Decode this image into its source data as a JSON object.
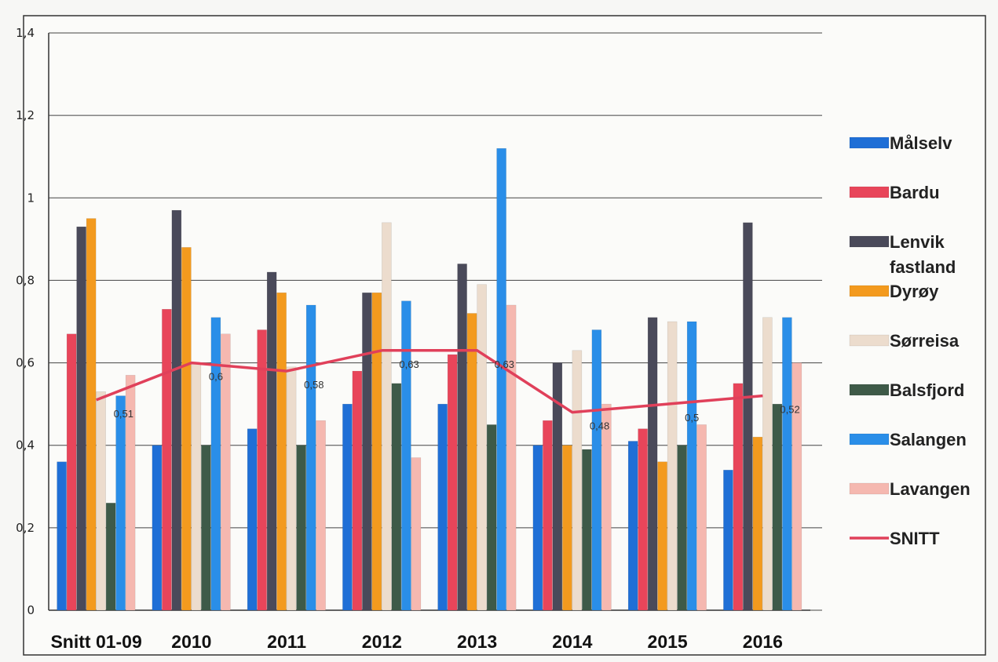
{
  "chart_data": {
    "type": "bar",
    "categories": [
      "Snitt 01-09",
      "2010",
      "2011",
      "2012",
      "2013",
      "2014",
      "2015",
      "2016"
    ],
    "ylim": [
      0,
      1.4
    ],
    "y_ticks": [
      "0",
      "0,2",
      "0,4",
      "0,6",
      "0,8",
      "1",
      "1,2",
      "1,4"
    ],
    "grid": true,
    "legend_position": "right",
    "series": [
      {
        "name": "Målselv",
        "color": "#1f6fd6",
        "values": [
          0.36,
          0.4,
          0.44,
          0.5,
          0.5,
          0.4,
          0.41,
          0.34
        ]
      },
      {
        "name": "Bardu",
        "color": "#e8455a",
        "values": [
          0.67,
          0.73,
          0.68,
          0.58,
          0.62,
          0.46,
          0.44,
          0.55
        ]
      },
      {
        "name": "Lenvik fastland",
        "color": "#4a4a5a",
        "values": [
          0.93,
          0.97,
          0.82,
          0.77,
          0.84,
          0.6,
          0.71,
          0.94
        ]
      },
      {
        "name": "Dyrøy",
        "color": "#f39a1e",
        "values": [
          0.95,
          0.88,
          0.77,
          0.77,
          0.72,
          0.4,
          0.36,
          0.42
        ]
      },
      {
        "name": "Sørreisa",
        "color": "#ecdccd",
        "values": [
          0.53,
          0.6,
          0.59,
          0.94,
          0.79,
          0.63,
          0.7,
          0.71
        ]
      },
      {
        "name": "Balsfjord",
        "color": "#3e5a48",
        "values": [
          0.26,
          0.4,
          0.4,
          0.55,
          0.45,
          0.39,
          0.4,
          0.5
        ]
      },
      {
        "name": "Salangen",
        "color": "#2a8ee8",
        "values": [
          0.52,
          0.71,
          0.74,
          0.75,
          1.12,
          0.68,
          0.7,
          0.71
        ]
      },
      {
        "name": "Lavangen",
        "color": "#f5b8b0",
        "values": [
          0.57,
          0.67,
          0.46,
          0.37,
          0.74,
          0.5,
          0.45,
          0.6
        ]
      }
    ],
    "line_series": {
      "name": "SNITT",
      "color": "#e0405a",
      "values": [
        0.51,
        0.6,
        0.58,
        0.63,
        0.63,
        0.48,
        0.5,
        0.52
      ],
      "labels": [
        "0,51",
        "0,6",
        "0,58",
        "0,63",
        "0,63",
        "0,48",
        "0,5",
        "0,52"
      ]
    },
    "legend": [
      {
        "label": "Målselv",
        "color": "#1f6fd6",
        "kind": "box"
      },
      {
        "label": "Bardu",
        "color": "#e8455a",
        "kind": "box"
      },
      {
        "label": "Lenvik\nfastland",
        "color": "#4a4a5a",
        "kind": "box"
      },
      {
        "label": "Dyrøy",
        "color": "#f39a1e",
        "kind": "box"
      },
      {
        "label": "Sørreisa",
        "color": "#ecdccd",
        "kind": "box"
      },
      {
        "label": "Balsfjord",
        "color": "#3e5a48",
        "kind": "box"
      },
      {
        "label": "Salangen",
        "color": "#2a8ee8",
        "kind": "box"
      },
      {
        "label": "Lavangen",
        "color": "#f5b8b0",
        "kind": "box"
      },
      {
        "label": "SNITT",
        "color": "#e0405a",
        "kind": "line"
      }
    ]
  }
}
